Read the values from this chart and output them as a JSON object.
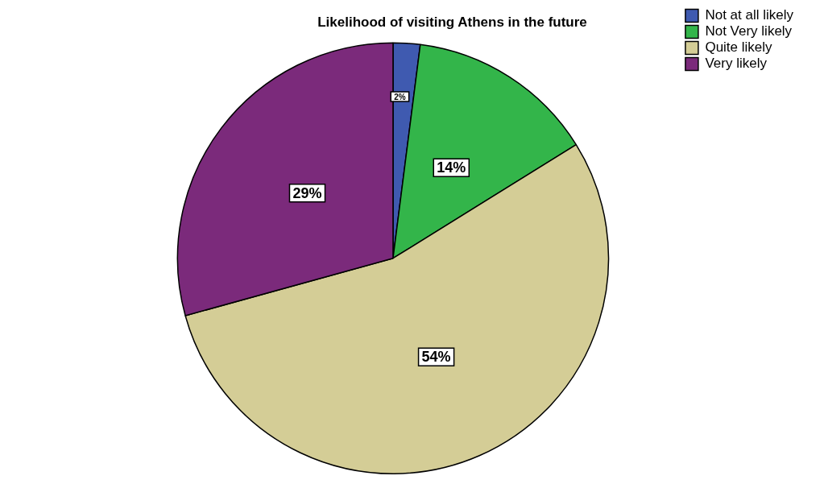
{
  "chart_data": {
    "type": "pie",
    "title": "Likelihood of visiting Athens in the future",
    "categories": [
      "Not at all likely",
      "Not Very likely",
      "Quite likely",
      "Very likely"
    ],
    "values": [
      2,
      14,
      54,
      29
    ],
    "colors": [
      "#3f5ab0",
      "#33b54a",
      "#d4cd96",
      "#7b2a7b"
    ],
    "value_labels": [
      "2%",
      "14%",
      "54%",
      "29%"
    ],
    "legend": "top right"
  }
}
